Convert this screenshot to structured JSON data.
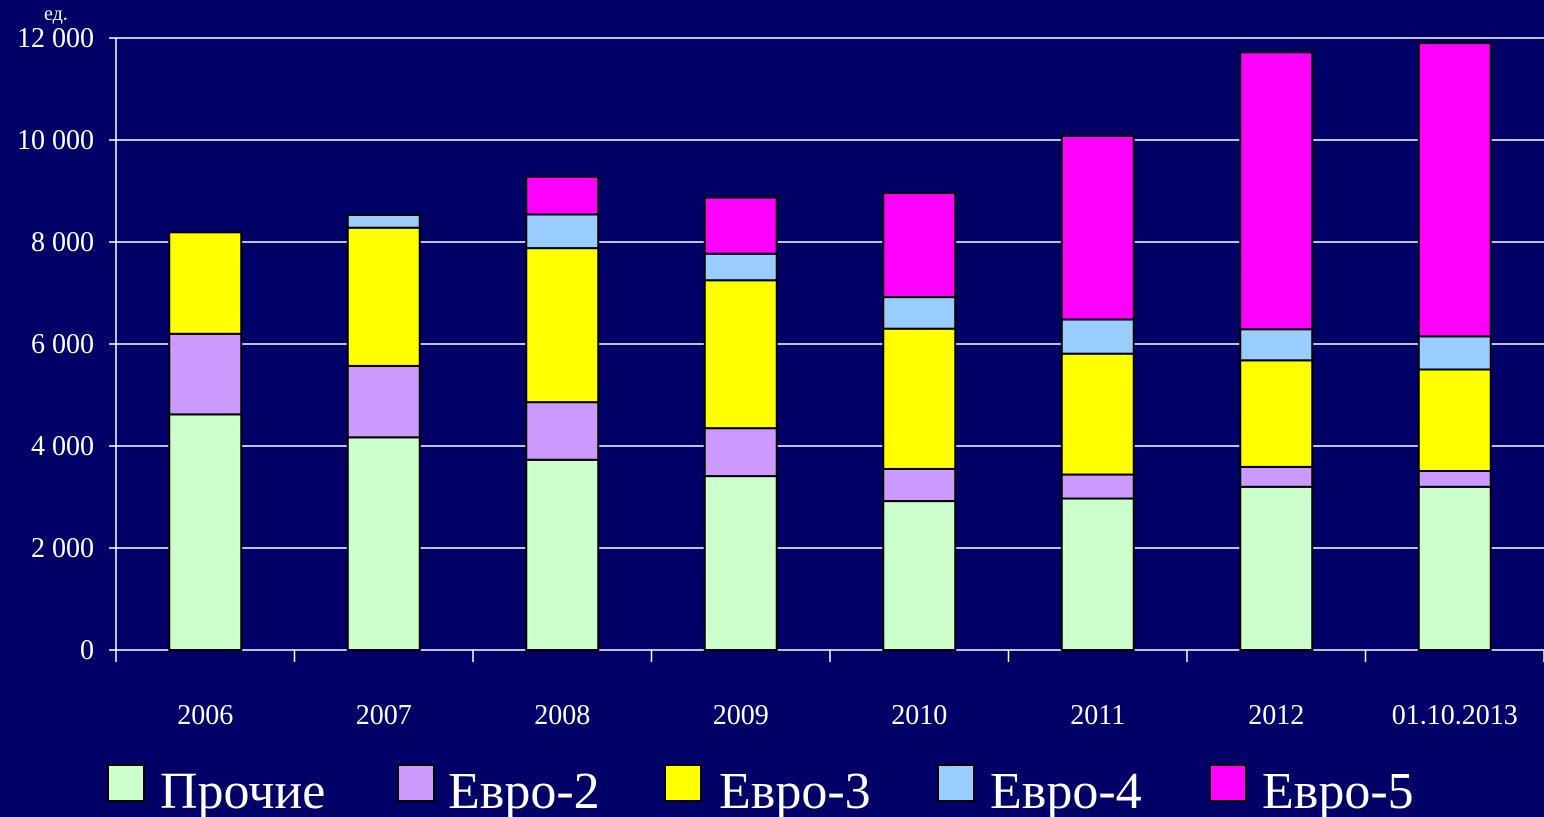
{
  "chart_data": {
    "type": "bar",
    "stacked": true,
    "unit_label": "ед.",
    "categories": [
      "2006",
      "2007",
      "2008",
      "2009",
      "2010",
      "2011",
      "2012",
      "01.10.2013"
    ],
    "ylim": [
      0,
      12000
    ],
    "y_ticks": [
      {
        "value": 0,
        "label": "0"
      },
      {
        "value": 2000,
        "label": "2 000"
      },
      {
        "value": 4000,
        "label": "4 000"
      },
      {
        "value": 6000,
        "label": "6 000"
      },
      {
        "value": 8000,
        "label": "8 000"
      },
      {
        "value": 10000,
        "label": "10 000"
      },
      {
        "value": 12000,
        "label": "12 000"
      }
    ],
    "grid": true,
    "legend_position": "bottom",
    "series": [
      {
        "name": "Прочие",
        "color": "#ccffcc",
        "values": [
          4620,
          4170,
          3730,
          3410,
          2920,
          2970,
          3200,
          3200
        ]
      },
      {
        "name": "Евро-2",
        "color": "#cc99ff",
        "values": [
          1580,
          1400,
          1130,
          940,
          630,
          470,
          390,
          310
        ]
      },
      {
        "name": "Евро-3",
        "color": "#ffff00",
        "values": [
          1990,
          2710,
          3020,
          2900,
          2750,
          2370,
          2090,
          1990
        ]
      },
      {
        "name": "Евро-4",
        "color": "#99ccff",
        "values": [
          0,
          250,
          660,
          520,
          620,
          670,
          610,
          650
        ]
      },
      {
        "name": "Евро-5",
        "color": "#ff00ff",
        "values": [
          0,
          0,
          740,
          1100,
          2040,
          3600,
          5430,
          5750
        ]
      }
    ]
  }
}
